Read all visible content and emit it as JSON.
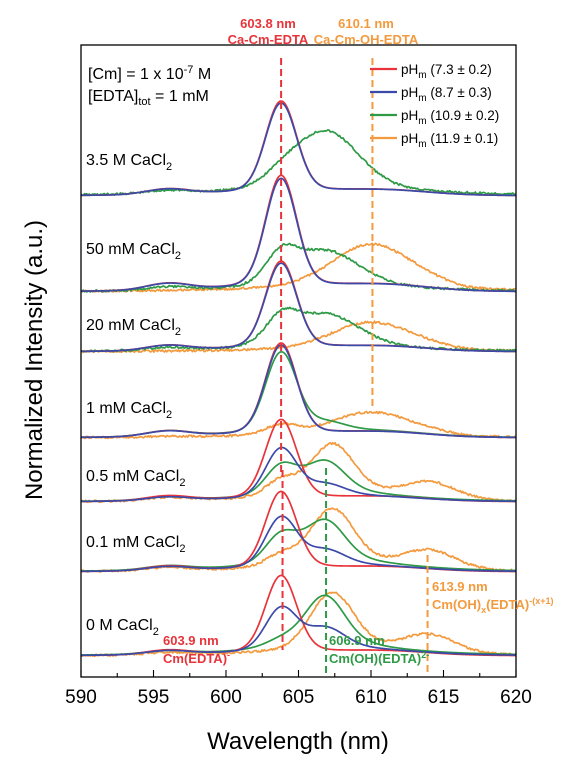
{
  "chart_data": {
    "type": "line",
    "title": "",
    "xlabel": "Wavelength (nm)",
    "ylabel": "Normalized Intensity (a.u.)",
    "xlim": [
      590,
      620
    ],
    "x_ticks": [
      "590",
      "595",
      "600",
      "605",
      "610",
      "615",
      "620"
    ],
    "grid": false,
    "legend_position": "top-right",
    "conditions": [
      {
        "main": "[Cm] = 1 x 10",
        "sup": "-7",
        "tail": " M"
      },
      {
        "main": "[EDTA]",
        "sub": "tot",
        "tail": " = 1 mM"
      }
    ],
    "colors": {
      "red": "#e8333a",
      "blue": "#3b4aa8",
      "green": "#2e9a46",
      "orange": "#f39a3e"
    },
    "legend": [
      {
        "prefix": "pH",
        "sub": "m",
        "text": " (7.3 ± 0.2)",
        "color": "#e8333a"
      },
      {
        "prefix": "pH",
        "sub": "m",
        "text": " (8.7 ± 0.3)",
        "color": "#3b4aa8"
      },
      {
        "prefix": "pH",
        "sub": "m",
        "text": " (10.9 ± 0.2)",
        "color": "#2e9a46"
      },
      {
        "prefix": "pH",
        "sub": "m",
        "text": " (11.9 ± 0.1)",
        "color": "#f39a3e"
      }
    ],
    "panels": [
      {
        "label": "3.5 M CaCl",
        "sub": "2",
        "hasOrange": false
      },
      {
        "label": "50 mM CaCl",
        "sub": "2",
        "hasOrange": true
      },
      {
        "label": "20 mM CaCl",
        "sub": "2",
        "hasOrange": true
      },
      {
        "label": "1 mM CaCl",
        "sub": "2",
        "hasOrange": true
      },
      {
        "label": "0.5 mM CaCl",
        "sub": "2",
        "hasOrange": true
      },
      {
        "label": "0.1 mM CaCl",
        "sub": "2",
        "hasOrange": true
      },
      {
        "label": "0 M CaCl",
        "sub": "2",
        "hasOrange": true
      }
    ],
    "annotations": [
      {
        "value": "603.8 nm",
        "name": "Ca-Cm-EDTA",
        "x": 603.8,
        "color": "#e8333a",
        "position": "top"
      },
      {
        "value": "610.1 nm",
        "name": "Ca-Cm-OH-EDTA",
        "x": 610.1,
        "color": "#f39a3e",
        "position": "top"
      },
      {
        "value": "603.9 nm",
        "name": "Cm(EDTA)",
        "sup": "-",
        "x": 603.9,
        "color": "#e8333a",
        "position": "bottom"
      },
      {
        "value": "606.9 nm",
        "name": "Cm(OH)(EDTA)",
        "sup": "2-",
        "x": 606.9,
        "color": "#2e9a46",
        "position": "bottom"
      },
      {
        "value": "613.9 nm",
        "name": "Cm(OH)",
        "sub": "x",
        "name2": "(EDTA)",
        "sup": "-(x+1)",
        "x": 613.9,
        "color": "#f39a3e",
        "position": "bottom"
      }
    ]
  }
}
